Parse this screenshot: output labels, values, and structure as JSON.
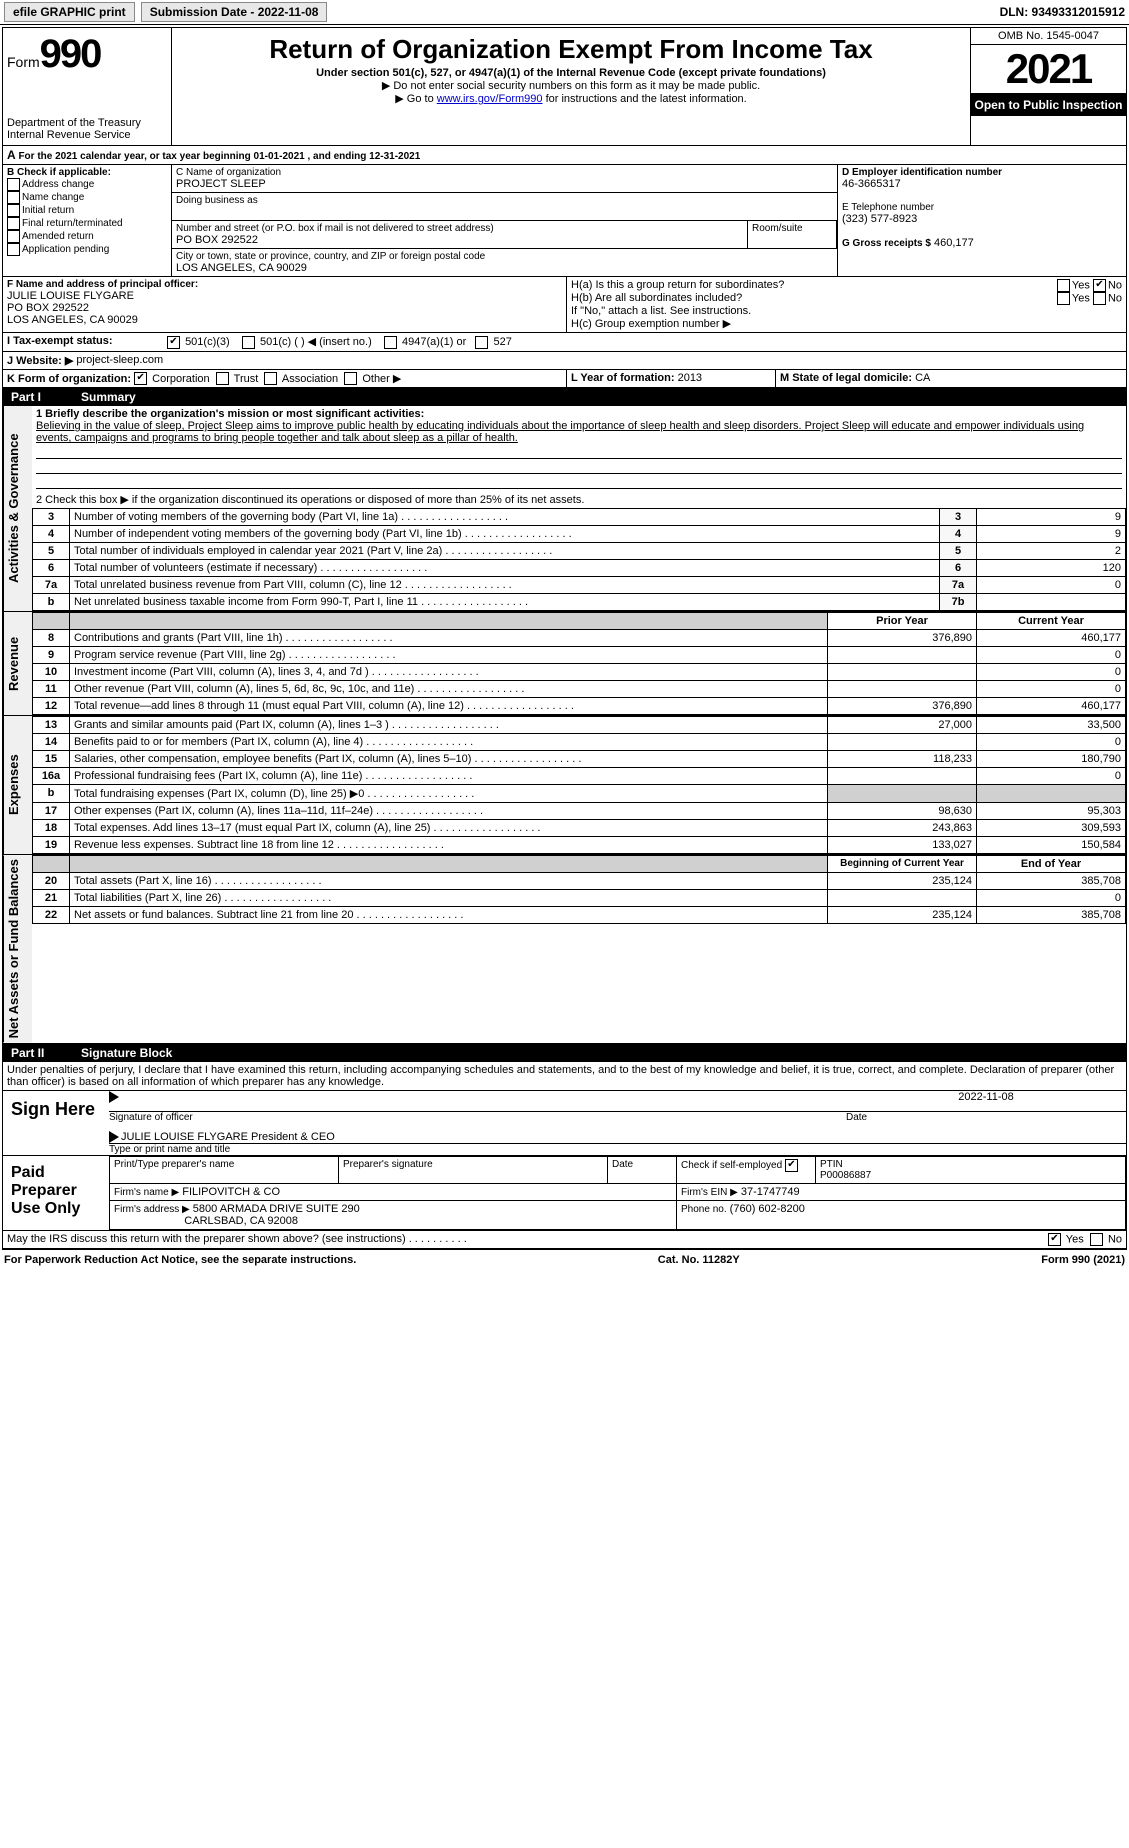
{
  "topbar": {
    "efile": "efile GRAPHIC print",
    "submission_label": "Submission Date - 2022-11-08",
    "dln_label": "DLN: 93493312015912"
  },
  "header": {
    "form_word": "Form",
    "form_num": "990",
    "dept": "Department of the Treasury",
    "irs": "Internal Revenue Service",
    "title": "Return of Organization Exempt From Income Tax",
    "subtitle": "Under section 501(c), 527, or 4947(a)(1) of the Internal Revenue Code (except private foundations)",
    "note1": "▶ Do not enter social security numbers on this form as it may be made public.",
    "note2_pre": "▶ Go to ",
    "note2_link": "www.irs.gov/Form990",
    "note2_post": " for instructions and the latest information.",
    "omb": "OMB No. 1545-0047",
    "year": "2021",
    "open": "Open to Public Inspection"
  },
  "line_a": "For the 2021 calendar year, or tax year beginning 01-01-2021    , and ending 12-31-2021",
  "box_b": {
    "title": "B Check if applicable:",
    "opts": [
      "Address change",
      "Name change",
      "Initial return",
      "Final return/terminated",
      "Amended return",
      "Application pending"
    ]
  },
  "box_c": {
    "label": "C Name of organization",
    "org": "PROJECT SLEEP",
    "dba_label": "Doing business as",
    "addr_label": "Number and street (or P.O. box if mail is not delivered to street address)",
    "room_label": "Room/suite",
    "addr": "PO BOX 292522",
    "city_label": "City or town, state or province, country, and ZIP or foreign postal code",
    "city": "LOS ANGELES, CA  90029"
  },
  "box_d": {
    "label": "D Employer identification number",
    "val": "46-3665317"
  },
  "box_e": {
    "label": "E Telephone number",
    "val": "(323) 577-8923"
  },
  "box_g": {
    "label": "G Gross receipts $",
    "val": "460,177"
  },
  "box_f": {
    "label": "F  Name and address of principal officer:",
    "name": "JULIE LOUISE FLYGARE",
    "addr1": "PO BOX 292522",
    "addr2": "LOS ANGELES, CA  90029"
  },
  "box_h": {
    "a": "H(a)  Is this a group return for subordinates?",
    "b": "H(b)  Are all subordinates included?",
    "b_note": "If \"No,\" attach a list. See instructions.",
    "c": "H(c)  Group exemption number ▶",
    "yes": "Yes",
    "no": "No"
  },
  "box_i": {
    "label": "I   Tax-exempt status:",
    "o1": "501(c)(3)",
    "o2": "501(c) (   ) ◀ (insert no.)",
    "o3": "4947(a)(1) or",
    "o4": "527"
  },
  "box_j": {
    "label": "J   Website: ▶",
    "val": "project-sleep.com"
  },
  "box_k": {
    "label": "K Form of organization:",
    "o1": "Corporation",
    "o2": "Trust",
    "o3": "Association",
    "o4": "Other ▶"
  },
  "box_l": {
    "label": "L Year of formation:",
    "val": "2013"
  },
  "box_m": {
    "label": "M State of legal domicile:",
    "val": "CA"
  },
  "part1": {
    "num": "Part I",
    "title": "Summary"
  },
  "mission": {
    "q": "1  Briefly describe the organization's mission or most significant activities:",
    "text": "Believing in the value of sleep, Project Sleep aims to improve public health by educating individuals about the importance of sleep health and sleep disorders. Project Sleep will educate and empower individuals using events, campaigns and programs to bring people together and talk about sleep as a pillar of health."
  },
  "line2": "2   Check this box ▶        if the organization discontinued its operations or disposed of more than 25% of its net assets.",
  "governance_lines": [
    {
      "n": "3",
      "t": "Number of voting members of the governing body (Part VI, line 1a)",
      "box": "3",
      "v": "9"
    },
    {
      "n": "4",
      "t": "Number of independent voting members of the governing body (Part VI, line 1b)",
      "box": "4",
      "v": "9"
    },
    {
      "n": "5",
      "t": "Total number of individuals employed in calendar year 2021 (Part V, line 2a)",
      "box": "5",
      "v": "2"
    },
    {
      "n": "6",
      "t": "Total number of volunteers (estimate if necessary)",
      "box": "6",
      "v": "120"
    },
    {
      "n": "7a",
      "t": "Total unrelated business revenue from Part VIII, column (C), line 12",
      "box": "7a",
      "v": "0"
    },
    {
      "n": "b",
      "t": "Net unrelated business taxable income from Form 990-T, Part I, line 11",
      "box": "7b",
      "v": ""
    }
  ],
  "col_headers": {
    "prior": "Prior Year",
    "current": "Current Year"
  },
  "revenue_lines": [
    {
      "n": "8",
      "t": "Contributions and grants (Part VIII, line 1h)",
      "p": "376,890",
      "c": "460,177"
    },
    {
      "n": "9",
      "t": "Program service revenue (Part VIII, line 2g)",
      "p": "",
      "c": "0"
    },
    {
      "n": "10",
      "t": "Investment income (Part VIII, column (A), lines 3, 4, and 7d )",
      "p": "",
      "c": "0"
    },
    {
      "n": "11",
      "t": "Other revenue (Part VIII, column (A), lines 5, 6d, 8c, 9c, 10c, and 11e)",
      "p": "",
      "c": "0"
    },
    {
      "n": "12",
      "t": "Total revenue—add lines 8 through 11 (must equal Part VIII, column (A), line 12)",
      "p": "376,890",
      "c": "460,177"
    }
  ],
  "expense_lines": [
    {
      "n": "13",
      "t": "Grants and similar amounts paid (Part IX, column (A), lines 1–3 )",
      "p": "27,000",
      "c": "33,500"
    },
    {
      "n": "14",
      "t": "Benefits paid to or for members (Part IX, column (A), line 4)",
      "p": "",
      "c": "0"
    },
    {
      "n": "15",
      "t": "Salaries, other compensation, employee benefits (Part IX, column (A), lines 5–10)",
      "p": "118,233",
      "c": "180,790"
    },
    {
      "n": "16a",
      "t": "Professional fundraising fees (Part IX, column (A), line 11e)",
      "p": "",
      "c": "0"
    },
    {
      "n": "b",
      "t": "Total fundraising expenses (Part IX, column (D), line 25) ▶0",
      "p": "SHADE",
      "c": "SHADE"
    },
    {
      "n": "17",
      "t": "Other expenses (Part IX, column (A), lines 11a–11d, 11f–24e)",
      "p": "98,630",
      "c": "95,303"
    },
    {
      "n": "18",
      "t": "Total expenses. Add lines 13–17 (must equal Part IX, column (A), line 25)",
      "p": "243,863",
      "c": "309,593"
    },
    {
      "n": "19",
      "t": "Revenue less expenses. Subtract line 18 from line 12",
      "p": "133,027",
      "c": "150,584"
    }
  ],
  "net_headers": {
    "begin": "Beginning of Current Year",
    "end": "End of Year"
  },
  "net_lines": [
    {
      "n": "20",
      "t": "Total assets (Part X, line 16)",
      "p": "235,124",
      "c": "385,708"
    },
    {
      "n": "21",
      "t": "Total liabilities (Part X, line 26)",
      "p": "",
      "c": "0"
    },
    {
      "n": "22",
      "t": "Net assets or fund balances. Subtract line 21 from line 20",
      "p": "235,124",
      "c": "385,708"
    }
  ],
  "part2": {
    "num": "Part II",
    "title": "Signature Block"
  },
  "penalty": "Under penalties of perjury, I declare that I have examined this return, including accompanying schedules and statements, and to the best of my knowledge and belief, it is true, correct, and complete. Declaration of preparer (other than officer) is based on all information of which preparer has any knowledge.",
  "sign": {
    "here": "Sign Here",
    "sig_officer": "Signature of officer",
    "date": "Date",
    "sig_date": "2022-11-08",
    "name": "JULIE LOUISE FLYGARE  President & CEO",
    "name_label": "Type or print name and title"
  },
  "paid": {
    "label": "Paid Preparer Use Only",
    "h1": "Print/Type preparer's name",
    "h2": "Preparer's signature",
    "h3": "Date",
    "h4": "Check         if self-employed",
    "h5": "PTIN",
    "ptin": "P00086887",
    "firm_label": "Firm's name      ▶",
    "firm": "FILIPOVITCH & CO",
    "ein_label": "Firm's EIN ▶",
    "ein": "37-1747749",
    "addr_label": "Firm's address ▶",
    "addr1": "5800 ARMADA DRIVE SUITE 290",
    "addr2": "CARLSBAD, CA  92008",
    "phone_label": "Phone no.",
    "phone": "(760) 602-8200"
  },
  "discuss": "May the IRS discuss this return with the preparer shown above? (see instructions)",
  "footer": {
    "left": "For Paperwork Reduction Act Notice, see the separate instructions.",
    "mid": "Cat. No. 11282Y",
    "right": "Form 990 (2021)"
  },
  "vtabs": {
    "gov": "Activities & Governance",
    "rev": "Revenue",
    "exp": "Expenses",
    "net": "Net Assets or Fund Balances"
  }
}
